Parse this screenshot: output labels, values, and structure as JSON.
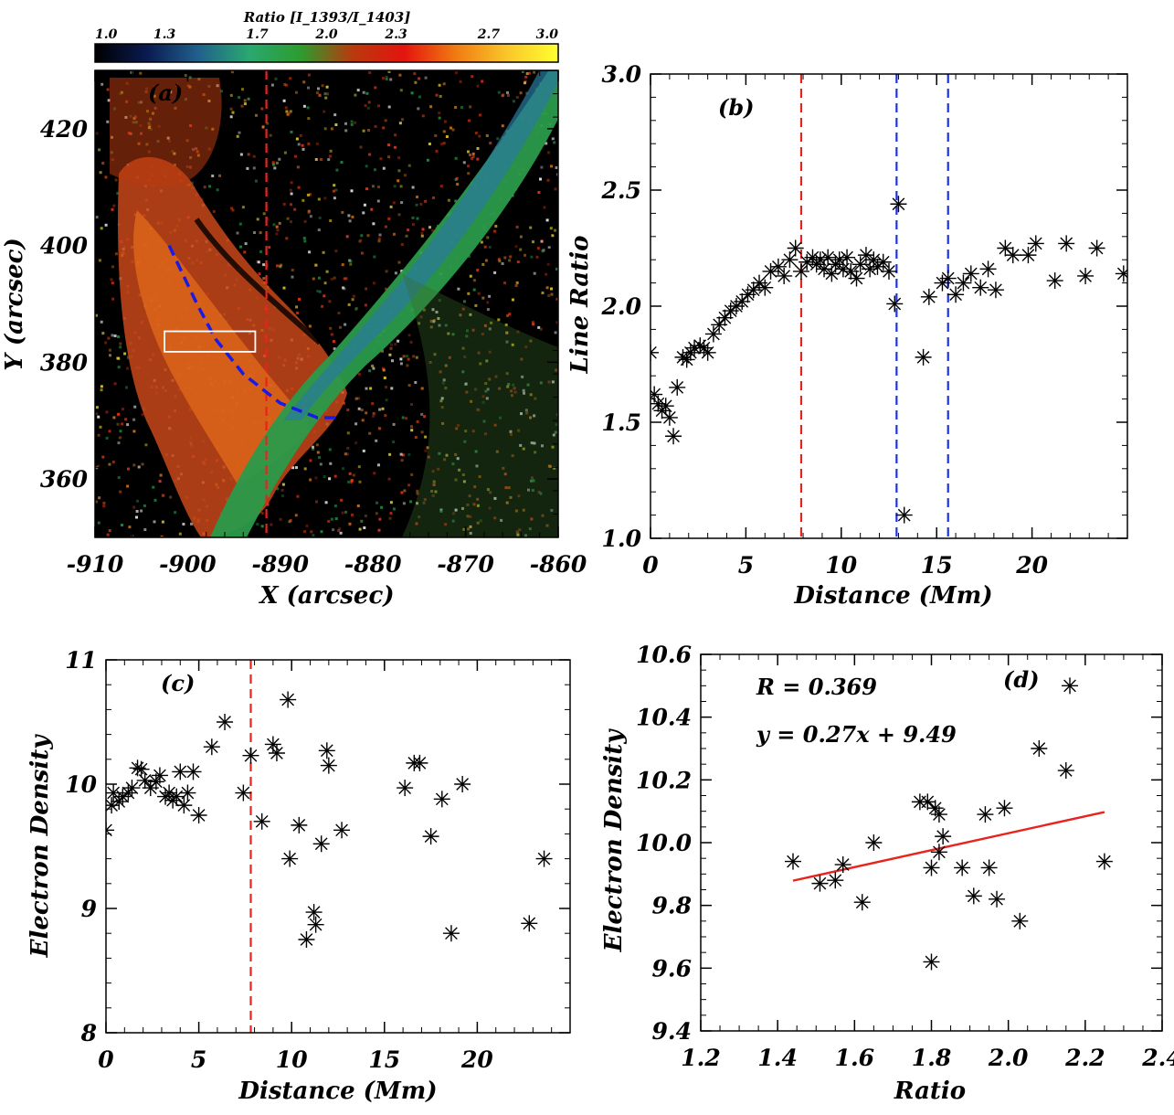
{
  "chart_data": [
    {
      "panel": "a",
      "type": "heatmap",
      "panel_label": "(a)",
      "xlabel": "X (arcsec)",
      "ylabel": "Y (arcsec)",
      "xlim": [
        -910,
        -860
      ],
      "ylim": [
        350,
        430
      ],
      "xticks": [
        -910,
        -900,
        -890,
        -880,
        -870,
        -860
      ],
      "xtick_labels": [
        "-910",
        "-900",
        "-890",
        "-880",
        "-870",
        "-860"
      ],
      "yticks": [
        360,
        380,
        400,
        420
      ],
      "ytick_labels": [
        "360",
        "380",
        "400",
        "420"
      ],
      "colorbar": {
        "title": "Ratio [I_1393/I_1403]",
        "range": [
          1.0,
          3.0
        ],
        "ticks": [
          1.0,
          1.3,
          1.7,
          2.0,
          2.3,
          2.7,
          3.0
        ],
        "tick_labels": [
          "1.0",
          "1.3",
          "1.7",
          "2.0",
          "2.3",
          "2.7",
          "3.0"
        ],
        "colors": [
          "#000000",
          "#0a1a50",
          "#20608c",
          "#2aa870",
          "#2c9c2e",
          "#b83a0c",
          "#e4140e",
          "#f07a12",
          "#fac62a",
          "#ffff30"
        ]
      },
      "red_dashed_x": -891.5,
      "box": {
        "x": [
          -902.5,
          -892.7
        ],
        "y": [
          381.8,
          385.3
        ],
        "color": "#ffffff"
      },
      "blue_dashed_path": {
        "x": [
          -902.0,
          -900.5,
          -899.0,
          -897.0,
          -894.0,
          -890.0,
          -886.0,
          -883.5
        ],
        "y": [
          400.0,
          395.0,
          390.0,
          384.0,
          378.0,
          373.0,
          370.5,
          370.5
        ],
        "color": "#1a1ae6"
      }
    },
    {
      "panel": "b",
      "type": "scatter",
      "panel_label": "(b)",
      "xlabel": "Distance (Mm)",
      "ylabel": "Line Ratio",
      "xlim": [
        0,
        25
      ],
      "ylim": [
        1.0,
        3.0
      ],
      "xticks": [
        0,
        5,
        10,
        15,
        20
      ],
      "xtick_labels": [
        "0",
        "5",
        "10",
        "15",
        "20"
      ],
      "yticks": [
        1.0,
        1.5,
        2.0,
        2.5,
        3.0
      ],
      "ytick_labels": [
        "1.0",
        "1.5",
        "2.0",
        "2.5",
        "3.0"
      ],
      "vlines": [
        {
          "x": 7.9,
          "color": "#e8231d"
        },
        {
          "x": 12.9,
          "color": "#1f32e8"
        },
        {
          "x": 15.6,
          "color": "#1f32e8"
        }
      ],
      "x": [
        0.0,
        0.2,
        0.4,
        0.6,
        0.8,
        1.0,
        1.2,
        1.4,
        1.7,
        1.9,
        2.1,
        2.3,
        2.6,
        2.8,
        3.0,
        3.3,
        3.6,
        3.9,
        4.2,
        4.5,
        4.8,
        5.1,
        5.4,
        5.7,
        6.0,
        6.3,
        6.7,
        7.0,
        7.3,
        7.6,
        7.9,
        8.2,
        8.5,
        8.7,
        8.9,
        9.1,
        9.3,
        9.5,
        9.7,
        9.9,
        10.1,
        10.3,
        10.5,
        10.8,
        11.0,
        11.3,
        11.5,
        11.7,
        11.9,
        12.2,
        12.5,
        12.8,
        13.0,
        13.3,
        14.3,
        14.6,
        15.3,
        15.6,
        16.0,
        16.4,
        16.8,
        17.3,
        17.7,
        18.1,
        18.6,
        19.0,
        19.8,
        20.2,
        21.2,
        21.8,
        22.8,
        23.4,
        24.8
      ],
      "y": [
        1.8,
        1.62,
        1.58,
        1.55,
        1.57,
        1.52,
        1.44,
        1.65,
        1.78,
        1.77,
        1.8,
        1.82,
        1.83,
        1.82,
        1.8,
        1.88,
        1.92,
        1.95,
        1.98,
        2.0,
        2.02,
        2.05,
        2.07,
        2.1,
        2.08,
        2.15,
        2.17,
        2.13,
        2.2,
        2.25,
        2.15,
        2.19,
        2.21,
        2.18,
        2.2,
        2.16,
        2.21,
        2.14,
        2.18,
        2.2,
        2.16,
        2.21,
        2.15,
        2.12,
        2.18,
        2.22,
        2.16,
        2.2,
        2.17,
        2.19,
        2.15,
        2.01,
        2.44,
        1.1,
        1.78,
        2.04,
        2.1,
        2.12,
        2.05,
        2.1,
        2.14,
        2.08,
        2.16,
        2.07,
        2.25,
        2.22,
        2.22,
        2.27,
        2.11,
        2.27,
        2.13,
        2.25,
        2.14
      ],
      "yplot_note": "",
      "x_ab_note": ""
    },
    {
      "panel": "c",
      "type": "scatter",
      "panel_label": "(c)",
      "xlabel": "Distance (Mm)",
      "ylabel": "Electron Density",
      "xlim": [
        0,
        25
      ],
      "ylim": [
        8,
        11
      ],
      "xticks": [
        0,
        5,
        10,
        15,
        20
      ],
      "xtick_labels": [
        "0",
        "5",
        "10",
        "15",
        "20"
      ],
      "yticks": [
        8,
        9,
        10,
        11
      ],
      "ytick_labels": [
        "8",
        "9",
        "10",
        "11"
      ],
      "vlines": [
        {
          "x": 7.8,
          "color": "#e8231d"
        }
      ],
      "x": [
        0.0,
        0.3,
        0.4,
        0.7,
        0.9,
        1.2,
        1.4,
        1.7,
        1.9,
        2.1,
        2.4,
        2.7,
        2.9,
        3.2,
        3.4,
        3.6,
        3.8,
        4.0,
        4.2,
        4.4,
        4.7,
        5.0,
        5.7,
        6.4,
        7.4,
        7.8,
        8.4,
        9.0,
        9.2,
        9.8,
        9.9,
        10.4,
        10.8,
        11.2,
        11.3,
        11.6,
        11.9,
        12.0,
        12.7,
        16.1,
        16.6,
        16.9,
        17.5,
        18.1,
        18.6,
        19.2,
        22.8,
        23.6
      ],
      "y": [
        9.63,
        9.83,
        9.93,
        9.86,
        9.9,
        9.93,
        9.97,
        10.13,
        10.12,
        10.03,
        9.97,
        10.02,
        10.07,
        9.9,
        9.93,
        9.87,
        9.9,
        10.1,
        9.83,
        9.93,
        10.1,
        9.75,
        10.3,
        10.5,
        9.93,
        10.23,
        9.7,
        10.32,
        10.25,
        10.68,
        9.4,
        9.67,
        8.75,
        8.97,
        8.87,
        9.52,
        10.27,
        10.15,
        9.63,
        9.97,
        10.17,
        10.17,
        9.58,
        9.88,
        8.8,
        10.0,
        8.88,
        9.4
      ]
    },
    {
      "panel": "d",
      "type": "scatter",
      "panel_label": "(d)",
      "xlabel": "Ratio",
      "ylabel": "Electron Density",
      "xlim": [
        1.2,
        2.4
      ],
      "ylim": [
        9.4,
        10.6
      ],
      "xticks": [
        1.2,
        1.4,
        1.6,
        1.8,
        2.0,
        2.2,
        2.4
      ],
      "xtick_labels": [
        "1.2",
        "1.4",
        "1.6",
        "1.8",
        "2.0",
        "2.2",
        "2.4"
      ],
      "yticks": [
        9.4,
        9.6,
        9.8,
        10.0,
        10.2,
        10.4,
        10.6
      ],
      "ytick_labels": [
        "9.4",
        "9.6",
        "9.8",
        "10.0",
        "10.2",
        "10.4",
        "10.6"
      ],
      "annotations": [
        "R = 0.369",
        "y = 0.27x + 9.49"
      ],
      "fit_line": {
        "slope": 0.27,
        "intercept": 9.49,
        "x_range": [
          1.44,
          2.25
        ],
        "color": "#e8231d"
      },
      "x": [
        1.44,
        1.51,
        1.55,
        1.57,
        1.62,
        1.65,
        1.77,
        1.79,
        1.8,
        1.8,
        1.81,
        1.82,
        1.82,
        1.83,
        1.88,
        1.91,
        1.94,
        1.95,
        1.97,
        1.99,
        2.03,
        2.08,
        2.15,
        2.16,
        2.25
      ],
      "y": [
        9.94,
        9.87,
        9.88,
        9.93,
        9.81,
        10.0,
        10.13,
        10.13,
        9.92,
        9.62,
        10.11,
        9.97,
        10.09,
        10.02,
        9.92,
        9.83,
        10.09,
        9.92,
        9.82,
        10.11,
        9.75,
        10.3,
        10.23,
        10.5,
        9.94
      ]
    }
  ]
}
